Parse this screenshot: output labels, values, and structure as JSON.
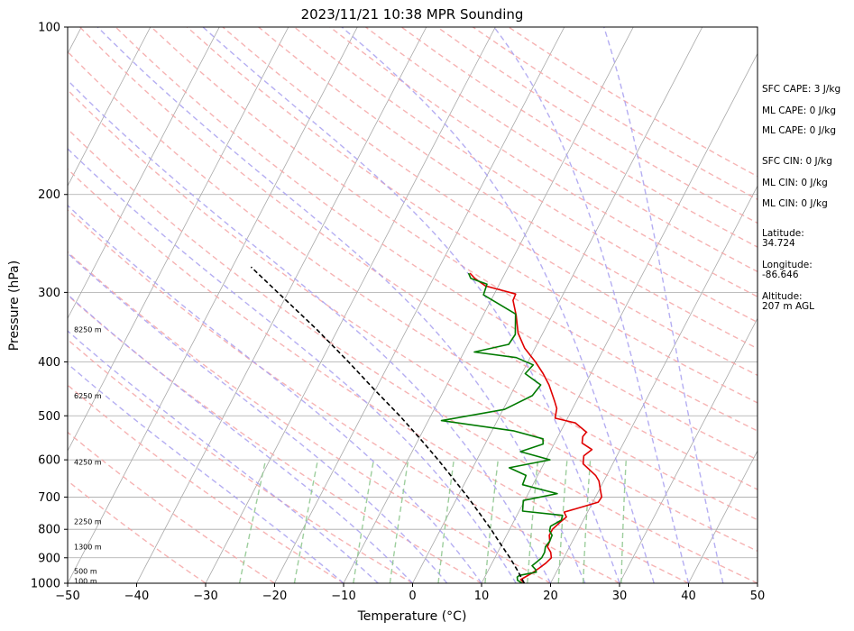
{
  "chart_data": {
    "type": "line",
    "subtype": "skew-t log-p sounding",
    "title": "2023/11/21 10:38 MPR Sounding",
    "xlabel": "Temperature (°C)",
    "ylabel": "Pressure (hPa)",
    "xlim": [
      -50,
      50
    ],
    "ylim": [
      1000,
      100
    ],
    "y_scale": "log",
    "skew_deg_per_decade": 42,
    "x_ticks": [
      "−50",
      "−40",
      "−30",
      "−20",
      "−10",
      "0",
      "10",
      "20",
      "30",
      "40",
      "50"
    ],
    "y_ticks": [
      "100",
      "200",
      "300",
      "400",
      "500",
      "600",
      "700",
      "800",
      "900",
      "1000"
    ],
    "grid": true,
    "height_labels": [
      {
        "p": 350,
        "label": "8250 m"
      },
      {
        "p": 460,
        "label": "6250 m"
      },
      {
        "p": 605,
        "label": "4250 m"
      },
      {
        "p": 775,
        "label": "2250 m"
      },
      {
        "p": 860,
        "label": "1300 m"
      },
      {
        "p": 950,
        "label": "500 m"
      },
      {
        "p": 990,
        "label": "100 m"
      }
    ],
    "series": [
      {
        "color": "#e00000",
        "points": [
          [
            1000,
            16.2
          ],
          [
            985,
            15.4
          ],
          [
            960,
            16.5
          ],
          [
            940,
            17.2
          ],
          [
            920,
            17.8
          ],
          [
            900,
            18.2
          ],
          [
            880,
            17.7
          ],
          [
            860,
            16.8
          ],
          [
            840,
            16.7
          ],
          [
            820,
            16.2
          ],
          [
            800,
            16.2
          ],
          [
            780,
            16.7
          ],
          [
            760,
            17.3
          ],
          [
            745,
            16.6
          ],
          [
            735,
            18.0
          ],
          [
            715,
            20.8
          ],
          [
            700,
            20.9
          ],
          [
            680,
            20.2
          ],
          [
            655,
            19.3
          ],
          [
            640,
            18.4
          ],
          [
            610,
            15.7
          ],
          [
            590,
            15.2
          ],
          [
            575,
            15.9
          ],
          [
            560,
            14.0
          ],
          [
            545,
            13.6
          ],
          [
            535,
            13.8
          ],
          [
            515,
            11.5
          ],
          [
            505,
            8.2
          ],
          [
            485,
            7.7
          ],
          [
            470,
            6.8
          ],
          [
            440,
            4.8
          ],
          [
            420,
            3.1
          ],
          [
            400,
            1.1
          ],
          [
            378,
            -1.5
          ],
          [
            355,
            -3.6
          ],
          [
            330,
            -5.2
          ],
          [
            310,
            -6.8
          ],
          [
            302,
            -6.9
          ],
          [
            292,
            -11.9
          ],
          [
            283,
            -14.0
          ],
          [
            277,
            -15.1
          ]
        ]
      },
      {
        "color": "#007a00",
        "points": [
          [
            1000,
            15.9
          ],
          [
            988,
            15.0
          ],
          [
            975,
            14.7
          ],
          [
            968,
            14.9
          ],
          [
            955,
            17.1
          ],
          [
            945,
            16.8
          ],
          [
            930,
            16.0
          ],
          [
            915,
            16.4
          ],
          [
            900,
            16.8
          ],
          [
            880,
            16.8
          ],
          [
            860,
            16.5
          ],
          [
            840,
            16.7
          ],
          [
            820,
            16.6
          ],
          [
            805,
            15.9
          ],
          [
            790,
            15.7
          ],
          [
            770,
            16.8
          ],
          [
            755,
            16.6
          ],
          [
            742,
            10.5
          ],
          [
            710,
            9.8
          ],
          [
            690,
            14.2
          ],
          [
            665,
            8.5
          ],
          [
            640,
            8.3
          ],
          [
            620,
            5.3
          ],
          [
            600,
            10.6
          ],
          [
            580,
            5.7
          ],
          [
            562,
            8.4
          ],
          [
            550,
            8.0
          ],
          [
            532,
            3.1
          ],
          [
            510,
            -8.1
          ],
          [
            487,
            0.2
          ],
          [
            460,
            3.2
          ],
          [
            440,
            3.6
          ],
          [
            420,
            0.5
          ],
          [
            405,
            1.0
          ],
          [
            393,
            -2.0
          ],
          [
            384,
            -8.5
          ],
          [
            372,
            -4.1
          ],
          [
            357,
            -3.9
          ],
          [
            328,
            -5.4
          ],
          [
            303,
            -11.5
          ],
          [
            290,
            -11.8
          ],
          [
            283,
            -14.6
          ],
          [
            277,
            -15.3
          ]
        ]
      },
      {
        "color": "#000000",
        "dashed": true,
        "points": [
          [
            1000,
            16.2
          ],
          [
            950,
            14.3
          ],
          [
            900,
            12.2
          ],
          [
            850,
            9.8
          ],
          [
            800,
            7.3
          ],
          [
            750,
            4.5
          ],
          [
            700,
            1.5
          ],
          [
            650,
            -1.9
          ],
          [
            600,
            -5.6
          ],
          [
            550,
            -9.8
          ],
          [
            500,
            -14.5
          ],
          [
            450,
            -20.0
          ],
          [
            400,
            -26.0
          ],
          [
            350,
            -33.0
          ],
          [
            300,
            -41.5
          ],
          [
            270,
            -47.3
          ]
        ]
      }
    ]
  },
  "stats": {
    "sfc_cape": "SFC CAPE: 3 J/kg",
    "ml_cape_1": "ML CAPE: 0 J/kg",
    "ml_cape_2": "ML CAPE: 0 J/kg",
    "sfc_cin": "SFC CIN: 0 J/kg",
    "ml_cin_1": "ML CIN: 0 J/kg",
    "ml_cin_2": "ML CIN: 0 J/kg",
    "lat_label": "Latitude:",
    "lat_value": "34.724",
    "lon_label": "Longitude:",
    "lon_value": "-86.646",
    "alt_label": "Altitude:",
    "alt_value": "207 m AGL"
  },
  "colors": {
    "dry_adiabat": "#f4a6a6",
    "moist_adiabat": "#a8a0f0",
    "mixing_ratio": "#8cc68c",
    "isotherm": "#a8a8a8",
    "isobar": "#a8a8a8"
  }
}
